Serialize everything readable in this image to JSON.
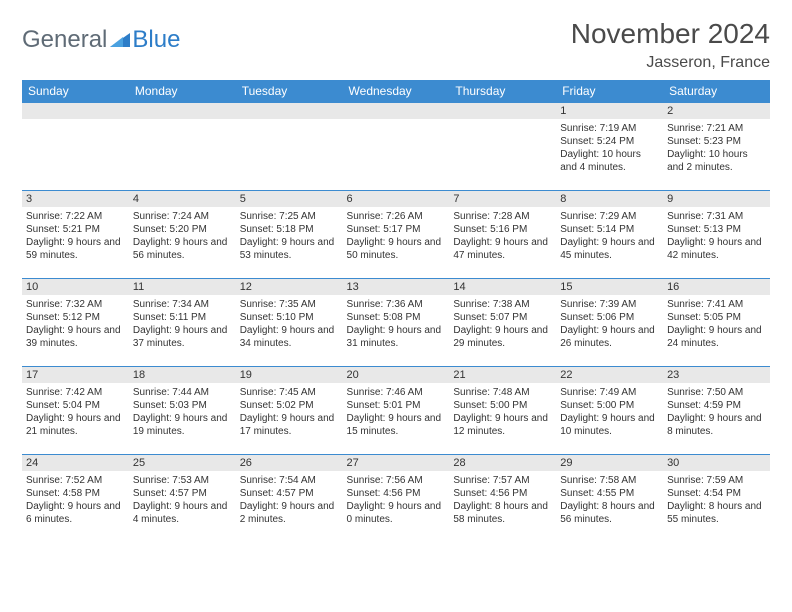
{
  "logo": {
    "text1": "General",
    "text2": "Blue",
    "mark_color": "#2d7dc8"
  },
  "title": "November 2024",
  "location": "Jasseron, France",
  "colors": {
    "header_bg": "#3c8bd0",
    "header_text": "#ffffff",
    "daynum_bg": "#e8e8e8",
    "border": "#3c8bd0",
    "body_text": "#333333",
    "title_text": "#4a4a4a",
    "logo_gray": "#5f6b76"
  },
  "day_headers": [
    "Sunday",
    "Monday",
    "Tuesday",
    "Wednesday",
    "Thursday",
    "Friday",
    "Saturday"
  ],
  "weeks": [
    [
      null,
      null,
      null,
      null,
      null,
      {
        "n": "1",
        "sr": "7:19 AM",
        "ss": "5:24 PM",
        "dl": "10 hours and 4 minutes."
      },
      {
        "n": "2",
        "sr": "7:21 AM",
        "ss": "5:23 PM",
        "dl": "10 hours and 2 minutes."
      }
    ],
    [
      {
        "n": "3",
        "sr": "7:22 AM",
        "ss": "5:21 PM",
        "dl": "9 hours and 59 minutes."
      },
      {
        "n": "4",
        "sr": "7:24 AM",
        "ss": "5:20 PM",
        "dl": "9 hours and 56 minutes."
      },
      {
        "n": "5",
        "sr": "7:25 AM",
        "ss": "5:18 PM",
        "dl": "9 hours and 53 minutes."
      },
      {
        "n": "6",
        "sr": "7:26 AM",
        "ss": "5:17 PM",
        "dl": "9 hours and 50 minutes."
      },
      {
        "n": "7",
        "sr": "7:28 AM",
        "ss": "5:16 PM",
        "dl": "9 hours and 47 minutes."
      },
      {
        "n": "8",
        "sr": "7:29 AM",
        "ss": "5:14 PM",
        "dl": "9 hours and 45 minutes."
      },
      {
        "n": "9",
        "sr": "7:31 AM",
        "ss": "5:13 PM",
        "dl": "9 hours and 42 minutes."
      }
    ],
    [
      {
        "n": "10",
        "sr": "7:32 AM",
        "ss": "5:12 PM",
        "dl": "9 hours and 39 minutes."
      },
      {
        "n": "11",
        "sr": "7:34 AM",
        "ss": "5:11 PM",
        "dl": "9 hours and 37 minutes."
      },
      {
        "n": "12",
        "sr": "7:35 AM",
        "ss": "5:10 PM",
        "dl": "9 hours and 34 minutes."
      },
      {
        "n": "13",
        "sr": "7:36 AM",
        "ss": "5:08 PM",
        "dl": "9 hours and 31 minutes."
      },
      {
        "n": "14",
        "sr": "7:38 AM",
        "ss": "5:07 PM",
        "dl": "9 hours and 29 minutes."
      },
      {
        "n": "15",
        "sr": "7:39 AM",
        "ss": "5:06 PM",
        "dl": "9 hours and 26 minutes."
      },
      {
        "n": "16",
        "sr": "7:41 AM",
        "ss": "5:05 PM",
        "dl": "9 hours and 24 minutes."
      }
    ],
    [
      {
        "n": "17",
        "sr": "7:42 AM",
        "ss": "5:04 PM",
        "dl": "9 hours and 21 minutes."
      },
      {
        "n": "18",
        "sr": "7:44 AM",
        "ss": "5:03 PM",
        "dl": "9 hours and 19 minutes."
      },
      {
        "n": "19",
        "sr": "7:45 AM",
        "ss": "5:02 PM",
        "dl": "9 hours and 17 minutes."
      },
      {
        "n": "20",
        "sr": "7:46 AM",
        "ss": "5:01 PM",
        "dl": "9 hours and 15 minutes."
      },
      {
        "n": "21",
        "sr": "7:48 AM",
        "ss": "5:00 PM",
        "dl": "9 hours and 12 minutes."
      },
      {
        "n": "22",
        "sr": "7:49 AM",
        "ss": "5:00 PM",
        "dl": "9 hours and 10 minutes."
      },
      {
        "n": "23",
        "sr": "7:50 AM",
        "ss": "4:59 PM",
        "dl": "9 hours and 8 minutes."
      }
    ],
    [
      {
        "n": "24",
        "sr": "7:52 AM",
        "ss": "4:58 PM",
        "dl": "9 hours and 6 minutes."
      },
      {
        "n": "25",
        "sr": "7:53 AM",
        "ss": "4:57 PM",
        "dl": "9 hours and 4 minutes."
      },
      {
        "n": "26",
        "sr": "7:54 AM",
        "ss": "4:57 PM",
        "dl": "9 hours and 2 minutes."
      },
      {
        "n": "27",
        "sr": "7:56 AM",
        "ss": "4:56 PM",
        "dl": "9 hours and 0 minutes."
      },
      {
        "n": "28",
        "sr": "7:57 AM",
        "ss": "4:56 PM",
        "dl": "8 hours and 58 minutes."
      },
      {
        "n": "29",
        "sr": "7:58 AM",
        "ss": "4:55 PM",
        "dl": "8 hours and 56 minutes."
      },
      {
        "n": "30",
        "sr": "7:59 AM",
        "ss": "4:54 PM",
        "dl": "8 hours and 55 minutes."
      }
    ]
  ],
  "labels": {
    "sunrise": "Sunrise: ",
    "sunset": "Sunset: ",
    "daylight": "Daylight: "
  }
}
